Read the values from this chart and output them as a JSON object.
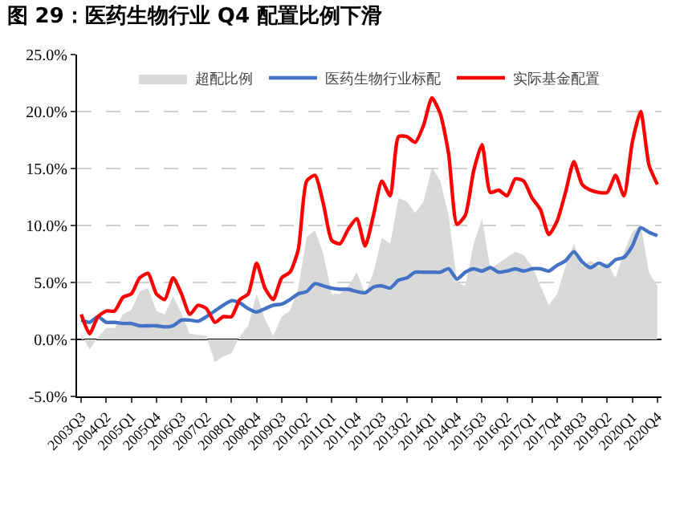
{
  "chart_data": {
    "type": "line",
    "title": "图 29：医药生物行业 Q4 配置比例下滑",
    "categories": [
      "2003Q3",
      null,
      null,
      "2004Q2",
      null,
      null,
      "2005Q1",
      null,
      null,
      "2005Q4",
      null,
      null,
      "2006Q3",
      null,
      null,
      "2007Q2",
      null,
      null,
      "2008Q1",
      null,
      null,
      "2008Q4",
      null,
      null,
      "2009Q3",
      null,
      null,
      "2010Q2",
      null,
      null,
      "2011Q1",
      null,
      null,
      "2011Q4",
      null,
      null,
      "2012Q3",
      null,
      null,
      "2013Q2",
      null,
      null,
      "2014Q1",
      null,
      null,
      "2014Q4",
      null,
      null,
      "2015Q3",
      null,
      null,
      "2016Q2",
      null,
      null,
      "2017Q1",
      null,
      null,
      "2017Q4",
      null,
      null,
      "2018Q3",
      null,
      null,
      "2019Q2",
      null,
      null,
      "2020Q1",
      null,
      null,
      "2020Q4"
    ],
    "series": [
      {
        "name": "超配比例",
        "type": "area",
        "color": "#d9d9d9",
        "values": [
          0.5,
          -0.9,
          0.2,
          1.0,
          1.0,
          2.2,
          2.6,
          4.2,
          4.5,
          2.5,
          2.2,
          3.8,
          2.3,
          0.5,
          0.4,
          0.3,
          -2.0,
          -1.5,
          -1.2,
          0.3,
          1.2,
          4.0,
          1.8,
          0.3,
          2.0,
          2.5,
          4.5,
          9.0,
          9.6,
          7.5,
          4.0,
          4.0,
          4.7,
          5.9,
          4.0,
          5.9,
          8.9,
          8.4,
          12.4,
          12.1,
          11.1,
          12.1,
          15.1,
          13.9,
          10.9,
          5.0,
          4.7,
          8.4,
          10.6,
          6.2,
          6.7,
          7.2,
          7.7,
          7.4,
          6.4,
          4.7,
          3.0,
          4.0,
          6.4,
          8.4,
          6.4,
          6.9,
          6.4,
          6.7,
          5.4,
          7.7,
          9.4,
          10.1,
          5.9,
          4.7
        ]
      },
      {
        "name": "医药生物行业标配",
        "color": "#4472c4",
        "values": [
          1.7,
          1.5,
          2.0,
          1.5,
          1.5,
          1.4,
          1.4,
          1.2,
          1.2,
          1.2,
          1.1,
          1.2,
          1.7,
          1.7,
          1.6,
          2.0,
          2.5,
          3.0,
          3.4,
          3.2,
          2.7,
          2.4,
          2.7,
          3.0,
          3.1,
          3.5,
          4.0,
          4.2,
          4.9,
          4.7,
          4.5,
          4.4,
          4.4,
          4.2,
          4.1,
          4.6,
          4.7,
          4.5,
          5.2,
          5.4,
          5.9,
          5.9,
          5.9,
          5.9,
          6.2,
          5.3,
          5.9,
          6.2,
          6.0,
          6.3,
          5.9,
          6.0,
          6.2,
          6.0,
          6.2,
          6.2,
          6.0,
          6.5,
          6.9,
          7.7,
          6.8,
          6.3,
          6.7,
          6.4,
          7.0,
          7.2,
          8.2,
          9.8,
          9.4,
          9.1
        ]
      },
      {
        "name": "实际基金配置",
        "color": "#ff0000",
        "values": [
          2.2,
          0.5,
          2.0,
          2.5,
          2.5,
          3.7,
          4.0,
          5.4,
          5.8,
          4.0,
          3.5,
          5.4,
          4.0,
          2.2,
          3.0,
          2.7,
          1.5,
          2.0,
          2.0,
          3.5,
          4.0,
          6.7,
          4.5,
          3.5,
          5.4,
          5.9,
          7.9,
          13.9,
          14.4,
          11.9,
          8.7,
          8.4,
          9.7,
          10.6,
          8.2,
          10.9,
          13.9,
          12.6,
          17.8,
          17.8,
          17.3,
          18.8,
          21.2,
          19.8,
          16.3,
          10.1,
          10.9,
          14.8,
          17.1,
          12.9,
          13.1,
          12.6,
          14.1,
          13.9,
          12.4,
          11.4,
          9.2,
          10.4,
          12.9,
          15.6,
          13.6,
          13.1,
          12.9,
          12.9,
          14.4,
          12.6,
          17.3,
          20.0,
          15.3,
          13.6
        ]
      }
    ],
    "ylim": [
      -5,
      25
    ],
    "yticks": [
      {
        "value": -5,
        "label": "-5.0%"
      },
      {
        "value": 0,
        "label": "0.0%"
      },
      {
        "value": 5,
        "label": "5.0%"
      },
      {
        "value": 10,
        "label": "10.0%"
      },
      {
        "value": 15,
        "label": "15.0%"
      },
      {
        "value": 20,
        "label": "20.0%"
      },
      {
        "value": 25,
        "label": "25.0%"
      }
    ],
    "grid": "y",
    "legend": "top",
    "marker": "none",
    "line_style": "solid"
  }
}
